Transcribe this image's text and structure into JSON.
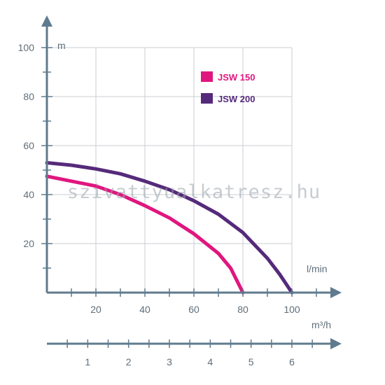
{
  "chart_data": {
    "type": "line",
    "xlabel": "l/min",
    "ylabel": "m",
    "secondary_xlabel": "m³/h",
    "xlim": [
      0,
      110
    ],
    "ylim": [
      0,
      100
    ],
    "x_ticks": [
      20,
      40,
      60,
      80,
      100
    ],
    "y_ticks": [
      20,
      40,
      60,
      80,
      100
    ],
    "secondary_x_ticks": [
      1,
      2,
      3,
      4,
      5,
      6
    ],
    "secondary_x_per_primary": 0.06,
    "grid": true,
    "legend_position": "top-right",
    "series": [
      {
        "name": "JSW 150",
        "color": "#e0167f",
        "x": [
          0,
          10,
          20,
          30,
          40,
          50,
          60,
          70,
          75,
          80
        ],
        "y": [
          47.5,
          45.5,
          43.5,
          40,
          35.5,
          30.5,
          24,
          16,
          10,
          0
        ]
      },
      {
        "name": "JSW 200",
        "color": "#552a7a",
        "x": [
          0,
          10,
          20,
          30,
          40,
          50,
          60,
          70,
          80,
          90,
          95,
          100
        ],
        "y": [
          53,
          52,
          50.5,
          48.5,
          45.5,
          42,
          37.5,
          32,
          24.5,
          14,
          7.5,
          0
        ]
      }
    ]
  },
  "watermark": "szivattyualkatresz.hu",
  "colors": {
    "axis": "#5f7b8e",
    "grid": "#c9ced3",
    "text": "#5f6e7a"
  }
}
